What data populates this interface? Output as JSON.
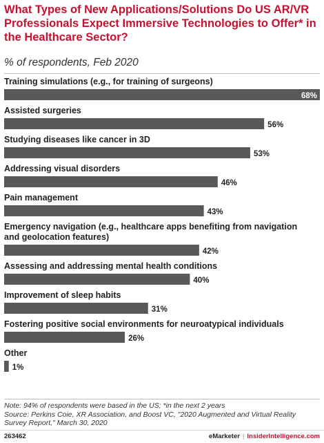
{
  "header": {
    "title": "What Types of New Applications/Solutions Do US AR/VR Professionals Expect Immersive Technologies to Offer* in the Healthcare Sector?",
    "subtitle": "% of respondents, Feb 2020"
  },
  "chart_data": {
    "type": "bar",
    "orientation": "horizontal",
    "categories": [
      "Training simulations (e.g., for training of surgeons)",
      "Assisted surgeries",
      "Studying diseases like cancer in 3D",
      "Addressing visual disorders",
      "Pain management",
      "Emergency navigation (e.g., healthcare apps benefiting from navigation and geolocation features)",
      "Assessing and addressing mental health conditions",
      "Improvement of sleep habits",
      "Fostering positive social environments for neuroatypical individuals",
      "Other"
    ],
    "values": [
      68,
      56,
      53,
      46,
      43,
      42,
      40,
      31,
      26,
      1
    ],
    "value_labels": [
      "68%",
      "56%",
      "53%",
      "46%",
      "43%",
      "42%",
      "40%",
      "31%",
      "26%",
      "1%"
    ],
    "xlim": [
      0,
      68
    ],
    "grid": false,
    "legend": "none",
    "bar_color": "#595959",
    "label_color_inside": "#ffffff",
    "label_color_outside": "#222222"
  },
  "notes": {
    "line1": "Note: 94% of respondents were based in the US; *in the next 2 years",
    "line2": "Source: Perkins Coie, XR Association, and Boost VC, \"2020 Augmented and Virtual Reality Survey Report,\" March 30, 2020"
  },
  "footer": {
    "chart_id": "263462",
    "brand_left": "eMarketer",
    "separator": "|",
    "brand_right": "InsiderIntelligence.com"
  }
}
